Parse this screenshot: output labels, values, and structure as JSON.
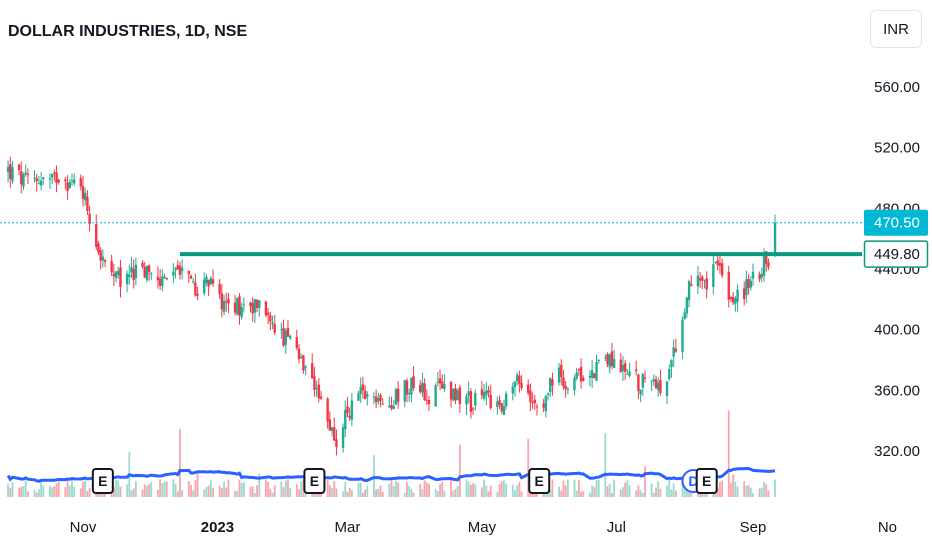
{
  "chart_data": {
    "type": "candlestick",
    "title": "DOLLAR INDUSTRIES, 1D, NSE",
    "currency": "INR",
    "y_ticks": [
      "560.00",
      "520.00",
      "480.00",
      "440.00",
      "400.00",
      "360.00",
      "320.00"
    ],
    "y_tick_values": [
      560,
      520,
      480,
      440,
      400,
      360,
      320
    ],
    "x_ticks": [
      {
        "label": "Nov",
        "date": "2022-11-01",
        "bold": false
      },
      {
        "label": "2023",
        "date": "2023-01-01",
        "bold": true
      },
      {
        "label": "Mar",
        "date": "2023-03-01",
        "bold": false
      },
      {
        "label": "May",
        "date": "2023-05-01",
        "bold": false
      },
      {
        "label": "Jul",
        "date": "2023-07-01",
        "bold": false
      },
      {
        "label": "Sep",
        "date": "2023-09-01",
        "bold": false
      },
      {
        "label": "No",
        "date": "2023-11-01",
        "bold": false
      }
    ],
    "price_markers": [
      {
        "label": "470.50",
        "value": 470.5,
        "color": "#00b8d4",
        "kind": "last-price"
      },
      {
        "label": "449.80",
        "value": 449.8,
        "color": "#089981",
        "kind": "horizontal-line"
      }
    ],
    "horizontal_line": {
      "value": 449.8,
      "start_date": "2022-12-15",
      "color": "#089981"
    },
    "events": [
      {
        "label": "E",
        "date": "2022-11-10",
        "type": "earnings"
      },
      {
        "label": "E",
        "date": "2023-02-14",
        "type": "earnings"
      },
      {
        "label": "E",
        "date": "2023-05-27",
        "type": "earnings"
      },
      {
        "label": "D",
        "date": "2023-08-05",
        "type": "dividend"
      },
      {
        "label": "E",
        "date": "2023-08-11",
        "type": "earnings"
      }
    ],
    "price_path": [
      [
        "2022-09-28",
        505
      ],
      [
        "2022-10-06",
        497
      ],
      [
        "2022-10-12",
        500
      ],
      [
        "2022-10-18",
        497
      ],
      [
        "2022-10-22",
        505
      ],
      [
        "2022-10-26",
        496
      ],
      [
        "2022-10-31",
        497
      ],
      [
        "2022-11-04",
        475
      ],
      [
        "2022-11-08",
        453
      ],
      [
        "2022-11-12",
        437
      ],
      [
        "2022-11-18",
        431
      ],
      [
        "2022-11-24",
        438
      ],
      [
        "2022-12-01",
        436
      ],
      [
        "2022-12-08",
        432
      ],
      [
        "2022-12-15",
        441
      ],
      [
        "2022-12-22",
        428
      ],
      [
        "2022-12-27",
        431
      ],
      [
        "2023-01-03",
        420
      ],
      [
        "2023-01-10",
        416
      ],
      [
        "2023-01-16",
        418
      ],
      [
        "2023-01-22",
        414
      ],
      [
        "2023-01-28",
        398
      ],
      [
        "2023-02-03",
        392
      ],
      [
        "2023-02-08",
        376
      ],
      [
        "2023-02-14",
        358
      ],
      [
        "2023-02-20",
        340
      ],
      [
        "2023-02-24",
        328
      ],
      [
        "2023-03-03",
        351
      ],
      [
        "2023-03-10",
        363
      ],
      [
        "2023-03-17",
        350
      ],
      [
        "2023-03-24",
        357
      ],
      [
        "2023-03-31",
        367
      ],
      [
        "2023-04-07",
        355
      ],
      [
        "2023-04-14",
        363
      ],
      [
        "2023-04-21",
        357
      ],
      [
        "2023-04-27",
        351
      ],
      [
        "2023-05-03",
        358
      ],
      [
        "2023-05-10",
        347
      ],
      [
        "2023-05-16",
        365
      ],
      [
        "2023-05-22",
        360
      ],
      [
        "2023-05-28",
        352
      ],
      [
        "2023-06-03",
        370
      ],
      [
        "2023-06-10",
        366
      ],
      [
        "2023-06-17",
        370
      ],
      [
        "2023-06-23",
        376
      ],
      [
        "2023-06-29",
        382
      ],
      [
        "2023-07-05",
        372
      ],
      [
        "2023-07-12",
        365
      ],
      [
        "2023-07-18",
        367
      ],
      [
        "2023-07-24",
        362
      ],
      [
        "2023-07-28",
        388
      ],
      [
        "2023-08-02",
        420
      ],
      [
        "2023-08-06",
        442
      ],
      [
        "2023-08-11",
        433
      ],
      [
        "2023-08-15",
        445
      ],
      [
        "2023-08-19",
        428
      ],
      [
        "2023-08-23",
        420
      ],
      [
        "2023-08-27",
        425
      ],
      [
        "2023-08-31",
        430
      ],
      [
        "2023-09-04",
        440
      ],
      [
        "2023-09-08",
        447
      ],
      [
        "2023-09-11",
        470.5
      ]
    ]
  }
}
